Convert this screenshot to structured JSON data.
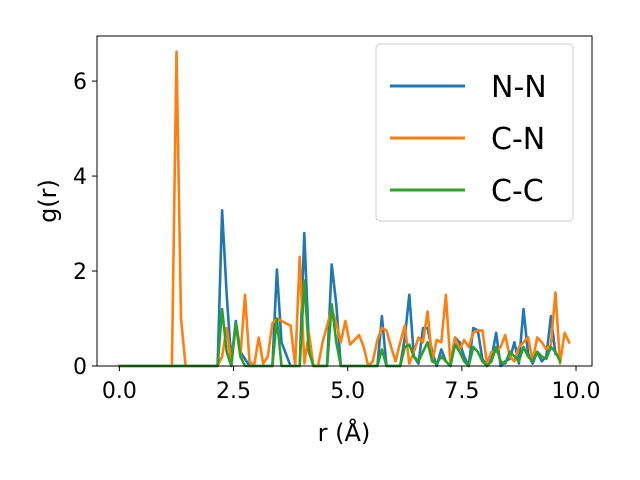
{
  "chart_data": {
    "type": "line",
    "xlabel": "r (Å)",
    "ylabel": "g(r)",
    "xlim": [
      -0.49,
      10.35
    ],
    "ylim": [
      0,
      6.95
    ],
    "xticks": [
      0.0,
      2.5,
      5.0,
      7.5,
      10.0
    ],
    "xtick_labels": [
      "0.0",
      "2.5",
      "5.0",
      "7.5",
      "10.0"
    ],
    "yticks": [
      0,
      2,
      4,
      6
    ],
    "ytick_labels": [
      "0",
      "2",
      "4",
      "6"
    ],
    "grid": false,
    "legend_position": "top-right",
    "series": [
      {
        "name": "N-N",
        "color": "#1f77b4",
        "x": [
          0.0,
          2.15,
          2.25,
          2.35,
          2.45,
          2.55,
          2.65,
          2.75,
          2.85,
          2.95,
          3.15,
          3.35,
          3.45,
          3.55,
          3.75,
          3.95,
          4.05,
          4.15,
          4.25,
          4.55,
          4.65,
          4.75,
          4.85,
          5.65,
          5.75,
          5.85,
          6.15,
          6.25,
          6.35,
          6.45,
          6.55,
          6.65,
          6.75,
          6.85,
          6.95,
          7.05,
          7.15,
          7.25,
          7.35,
          7.45,
          7.55,
          7.65,
          7.75,
          7.85,
          7.95,
          8.05,
          8.15,
          8.25,
          8.35,
          8.45,
          8.55,
          8.65,
          8.75,
          8.85,
          8.95,
          9.05,
          9.15,
          9.25,
          9.35,
          9.45,
          9.55,
          9.65
        ],
        "y": [
          0,
          0,
          3.28,
          1.5,
          0.1,
          0.95,
          0.3,
          0.15,
          0,
          0,
          0,
          0,
          2.03,
          0.5,
          0,
          0,
          2.8,
          0.4,
          0,
          0,
          2.14,
          1.3,
          0,
          0,
          1.05,
          0,
          0,
          0.6,
          1.5,
          0.2,
          0.05,
          0.8,
          0.8,
          0.3,
          0,
          0.35,
          0.1,
          0,
          0.6,
          0.5,
          0.2,
          0,
          0.8,
          0.75,
          0.15,
          0,
          0.15,
          0.7,
          0,
          0.1,
          0.15,
          0.5,
          0.05,
          1.2,
          0.25,
          0.05,
          0.3,
          0.1,
          0.2,
          1.05,
          0.25,
          0.2
        ]
      },
      {
        "name": "C-N",
        "color": "#ff7f0e",
        "x": [
          0.0,
          1.15,
          1.25,
          1.35,
          1.45,
          2.05,
          2.15,
          2.25,
          2.35,
          2.45,
          2.55,
          2.65,
          2.75,
          2.85,
          2.95,
          3.05,
          3.15,
          3.25,
          3.35,
          3.45,
          3.55,
          3.65,
          3.75,
          3.85,
          3.95,
          4.05,
          4.15,
          4.25,
          4.35,
          4.45,
          4.55,
          4.65,
          4.75,
          4.85,
          4.95,
          5.05,
          5.15,
          5.25,
          5.35,
          5.45,
          5.55,
          5.65,
          5.75,
          5.85,
          5.95,
          6.05,
          6.15,
          6.25,
          6.35,
          6.45,
          6.55,
          6.65,
          6.75,
          6.85,
          6.95,
          7.05,
          7.15,
          7.25,
          7.35,
          7.45,
          7.55,
          7.65,
          7.75,
          7.85,
          7.95,
          8.05,
          8.15,
          8.25,
          8.35,
          8.45,
          8.55,
          8.65,
          8.75,
          8.85,
          8.95,
          9.05,
          9.15,
          9.25,
          9.35,
          9.45,
          9.55,
          9.65,
          9.75,
          9.85
        ],
        "y": [
          0,
          0,
          6.62,
          1.0,
          0,
          0,
          0,
          0.2,
          0.8,
          0.05,
          0.9,
          0.2,
          1.5,
          0.1,
          0,
          0.6,
          0.05,
          0.2,
          0.9,
          1.0,
          0.95,
          0.9,
          0.85,
          0,
          2.3,
          0.05,
          0.7,
          0,
          0,
          0.5,
          0.85,
          1.2,
          0.9,
          0.5,
          0.95,
          0.45,
          0.55,
          0.65,
          0.4,
          0,
          0.1,
          0.55,
          0.8,
          0.75,
          0.4,
          0.1,
          0.5,
          0.85,
          0.05,
          0.3,
          0.6,
          0.5,
          1.15,
          0.1,
          0.55,
          0.5,
          1.5,
          0.05,
          0.6,
          0.35,
          0.55,
          0.4,
          0.7,
          0.75,
          0.75,
          0.05,
          0.3,
          0.3,
          0.4,
          0.65,
          0.2,
          0.1,
          0.4,
          0.5,
          0.6,
          0.1,
          0.6,
          0.5,
          0.35,
          0.45,
          1.55,
          0.05,
          0.7,
          0.5
        ]
      },
      {
        "name": "C-C",
        "color": "#2ca02c",
        "x": [
          0.0,
          2.15,
          2.25,
          2.35,
          2.45,
          2.55,
          2.65,
          2.75,
          3.35,
          3.45,
          3.55,
          3.95,
          4.05,
          4.15,
          4.25,
          4.55,
          4.65,
          4.75,
          4.85,
          5.65,
          5.75,
          5.85,
          6.15,
          6.25,
          6.35,
          6.45,
          6.55,
          6.65,
          6.75,
          6.85,
          6.95,
          7.05,
          7.15,
          7.25,
          7.35,
          7.45,
          7.55,
          7.65,
          7.75,
          7.85,
          7.95,
          8.05,
          8.15,
          8.25,
          8.35,
          8.45,
          8.55,
          8.65,
          8.75,
          8.85,
          8.95,
          9.05,
          9.15,
          9.25,
          9.35,
          9.45,
          9.55,
          9.65
        ],
        "y": [
          0,
          0,
          1.2,
          0.3,
          0,
          0.9,
          0.2,
          0,
          0,
          1.0,
          0,
          0,
          1.8,
          0.3,
          0,
          0,
          1.3,
          0.5,
          0,
          0,
          0.35,
          0,
          0,
          0.4,
          0.45,
          0.2,
          0.1,
          0.3,
          0.5,
          0.1,
          0.05,
          0.2,
          0.1,
          0,
          0.45,
          0.3,
          0.1,
          0,
          0.4,
          0.3,
          0.1,
          0,
          0.1,
          0.4,
          0.1,
          0.05,
          0.3,
          0.2,
          0.1,
          0.4,
          0.2,
          0.1,
          0.3,
          0.2,
          0.15,
          0.4,
          0.3,
          0.1
        ]
      }
    ]
  }
}
